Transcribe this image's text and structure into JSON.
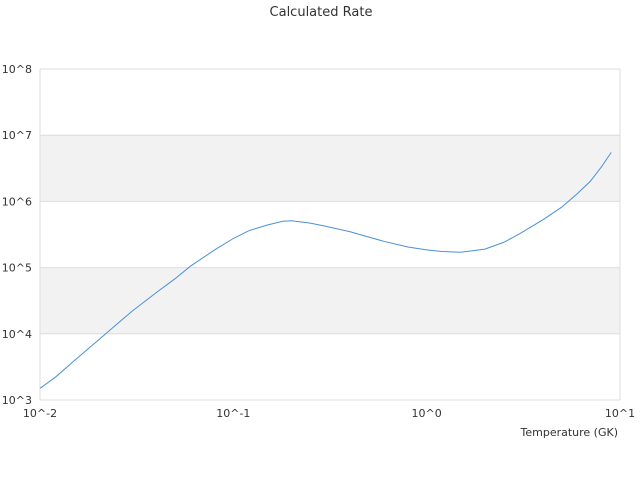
{
  "chart_data": {
    "type": "line",
    "title": "Calculated Rate",
    "xlabel": "Temperature (GK)",
    "ylabel": "",
    "x_scale": "log",
    "y_scale": "log",
    "xlim": [
      0.01,
      10
    ],
    "ylim": [
      1000,
      100000000
    ],
    "x_ticks": [
      "10^-2",
      "10^-1",
      "10^0",
      "10^1"
    ],
    "y_ticks": [
      "10^3",
      "10^4",
      "10^5",
      "10^6",
      "10^7",
      "10^8"
    ],
    "band_fill": "#f2f2f2",
    "grid_color": "#dddddd",
    "series": [
      {
        "color": "#4a90d9",
        "x": [
          0.01,
          0.012,
          0.015,
          0.02,
          0.025,
          0.03,
          0.04,
          0.05,
          0.06,
          0.08,
          0.1,
          0.12,
          0.15,
          0.18,
          0.2,
          0.25,
          0.3,
          0.4,
          0.5,
          0.6,
          0.8,
          1.0,
          1.2,
          1.5,
          2.0,
          2.5,
          3.0,
          4.0,
          5.0,
          6.0,
          7.0,
          8.0,
          9.0
        ],
        "y": [
          1500,
          2200,
          3900,
          8000,
          14000,
          22000,
          42000,
          68000,
          105000,
          185000,
          275000,
          360000,
          440000,
          500000,
          510000,
          470000,
          420000,
          350000,
          290000,
          250000,
          205000,
          185000,
          175000,
          170000,
          190000,
          240000,
          320000,
          530000,
          820000,
          1300000,
          2000000,
          3300000,
          5500000
        ]
      }
    ]
  }
}
